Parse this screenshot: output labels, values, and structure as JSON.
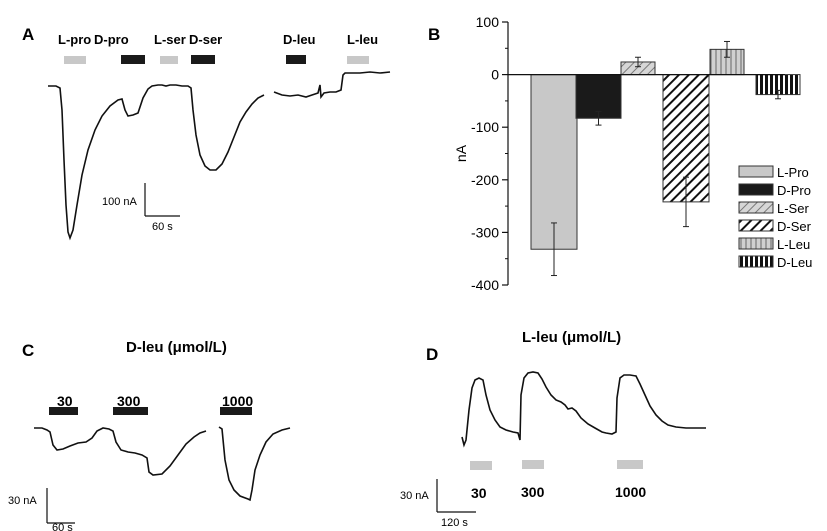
{
  "figure": {
    "panelA": {
      "letter": "A",
      "drug_labels": [
        "L-pro",
        "D-pro",
        "L-ser",
        "D-ser",
        "D-leu",
        "L-leu"
      ],
      "scale_y": "100 nA",
      "scale_x": "60 s"
    },
    "panelB": {
      "letter": "B"
    },
    "panelC": {
      "letter": "C",
      "title": "D-leu (μmol/L)",
      "concentrations": [
        "30",
        "300",
        "1000"
      ],
      "scale_y": "30 nA",
      "scale_x": "60 s"
    },
    "panelD": {
      "letter": "D",
      "title": "L-leu (μmol/L)",
      "concentrations": [
        "30",
        "300",
        "1000"
      ],
      "scale_y": "30 nA",
      "scale_x": "120 s"
    }
  },
  "colors": {
    "light": "#c8c8c8",
    "dark": "#1a1a1a"
  },
  "chart_data": {
    "type": "bar",
    "ylabel": "nA",
    "ylim": [
      -400,
      100
    ],
    "yticks": [
      100,
      0,
      -100,
      -200,
      -300,
      -400
    ],
    "legend_position": "right",
    "series": [
      {
        "name": "L-Pro",
        "value": -332,
        "error": 50,
        "fill": "light"
      },
      {
        "name": "D-Pro",
        "value": -83,
        "error": 13,
        "fill": "dark"
      },
      {
        "name": "L-Ser",
        "value": 24,
        "error": 9,
        "fill": "light-hatch"
      },
      {
        "name": "D-Ser",
        "value": -242,
        "error": 47,
        "fill": "dark-hatch"
      },
      {
        "name": "L-Leu",
        "value": 48,
        "error": 15,
        "fill": "light-vertical"
      },
      {
        "name": "D-Leu",
        "value": -38,
        "error": 8,
        "fill": "dark-vertical"
      }
    ]
  }
}
